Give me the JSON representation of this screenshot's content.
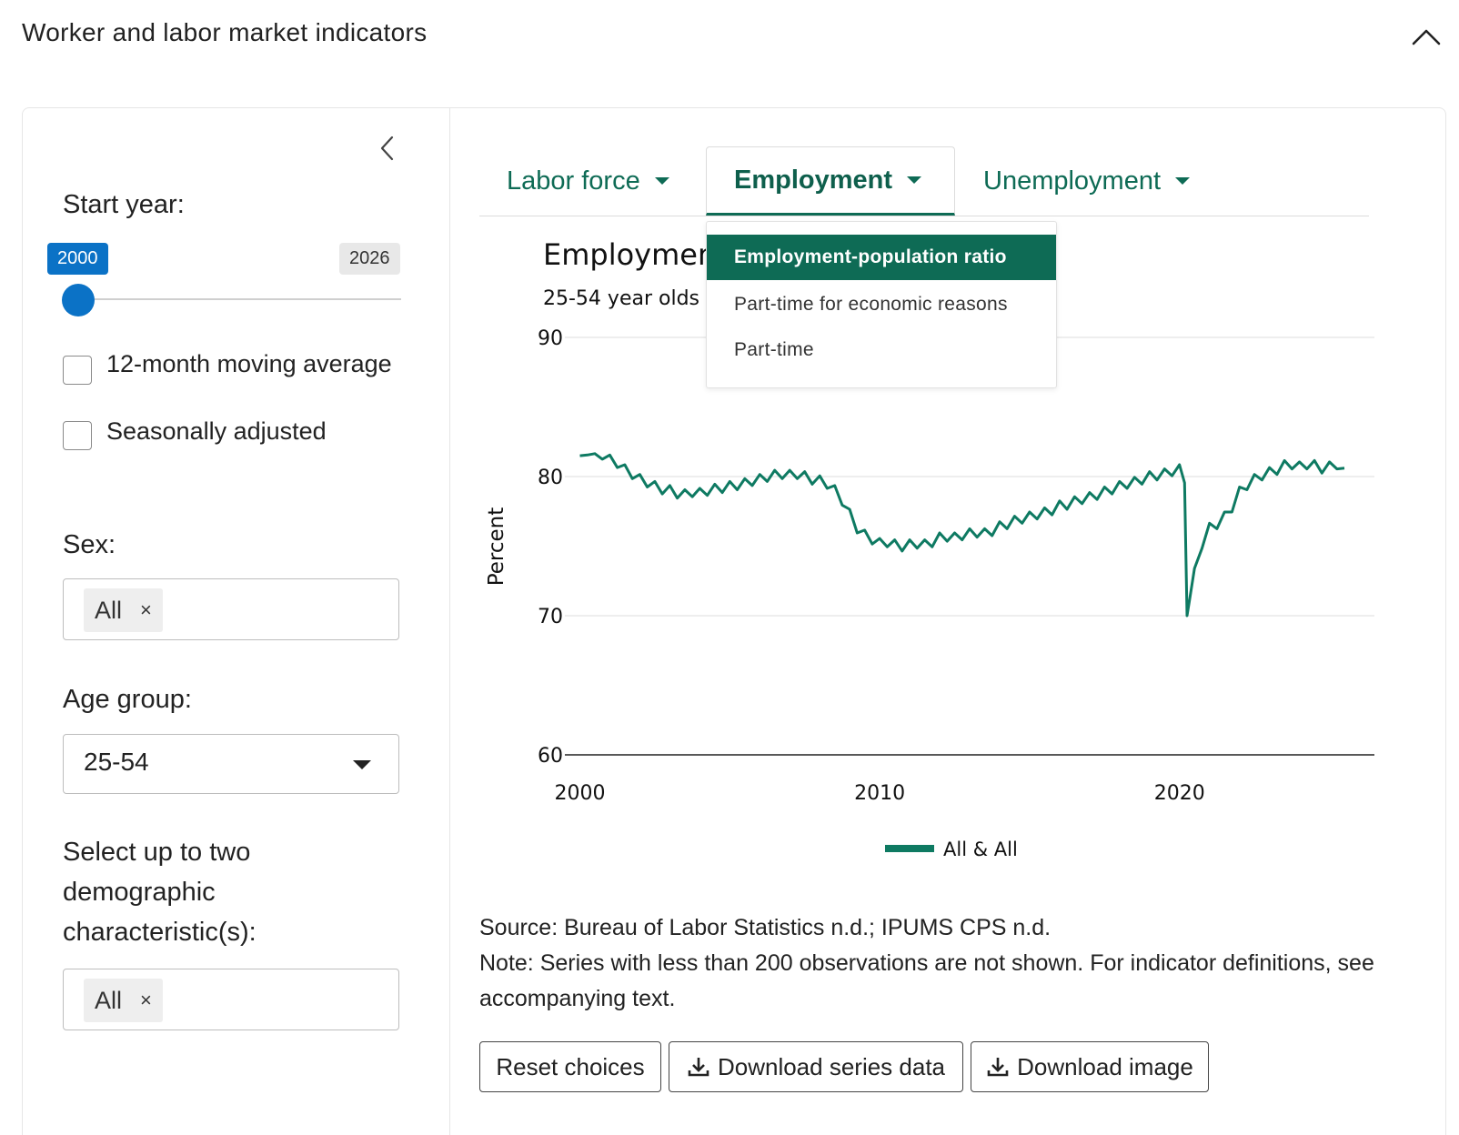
{
  "section": {
    "title": "Worker and labor market indicators"
  },
  "sidebar": {
    "start_year_label": "Start year:",
    "slider": {
      "from_label": "2000",
      "to_label": "2026",
      "value": 2000,
      "min": 2000,
      "max": 2026
    },
    "checkboxes": [
      {
        "label": "12-month moving average",
        "checked": false
      },
      {
        "label": "Seasonally adjusted",
        "checked": false
      }
    ],
    "sex": {
      "label": "Sex:",
      "chip": "All",
      "remove": "×"
    },
    "age_group": {
      "label": "Age group:",
      "value": "25-54"
    },
    "demographic": {
      "label": "Select up to two demographic characteristic(s):",
      "chip": "All",
      "remove": "×"
    }
  },
  "tabs": [
    {
      "label": "Labor force",
      "active": false
    },
    {
      "label": "Employment",
      "active": true
    },
    {
      "label": "Unemployment",
      "active": false
    }
  ],
  "dropdown": {
    "items": [
      {
        "label": "Employment-population ratio",
        "active": true
      },
      {
        "label": "Part-time for economic reasons",
        "active": false
      },
      {
        "label": "Part-time",
        "active": false
      }
    ]
  },
  "chart_data": {
    "type": "line",
    "title": "Employmen",
    "subtitle": "25-54 year olds",
    "ylabel": "Percent",
    "ylim": [
      60,
      90
    ],
    "yticks": [
      60,
      70,
      80,
      90
    ],
    "xlim": [
      1999.5,
      2026.5
    ],
    "xticks": [
      2000,
      2010,
      2020
    ],
    "grid": true,
    "legend_position": "bottom",
    "series": [
      {
        "name": "All & All",
        "color": "#0e7a62",
        "points": [
          [
            2000.0,
            81.5
          ],
          [
            2000.25,
            81.9
          ],
          [
            2000.5,
            81.3
          ],
          [
            2000.75,
            81.6
          ],
          [
            2001.0,
            81.2
          ],
          [
            2001.25,
            81.0
          ],
          [
            2001.5,
            80.5
          ],
          [
            2001.75,
            80.2
          ],
          [
            2002.0,
            79.8
          ],
          [
            2002.25,
            79.6
          ],
          [
            2002.5,
            79.3
          ],
          [
            2002.75,
            79.1
          ],
          [
            2003.0,
            79.0
          ],
          [
            2003.25,
            78.8
          ],
          [
            2003.5,
            78.7
          ],
          [
            2003.75,
            78.9
          ],
          [
            2004.0,
            78.8
          ],
          [
            2004.25,
            79.0
          ],
          [
            2004.5,
            79.1
          ],
          [
            2004.75,
            79.2
          ],
          [
            2005.0,
            79.3
          ],
          [
            2005.25,
            79.4
          ],
          [
            2005.5,
            79.5
          ],
          [
            2005.75,
            79.7
          ],
          [
            2006.0,
            79.8
          ],
          [
            2006.25,
            80.0
          ],
          [
            2006.5,
            80.1
          ],
          [
            2006.75,
            80.2
          ],
          [
            2007.0,
            80.1
          ],
          [
            2007.25,
            80.2
          ],
          [
            2007.5,
            80.0
          ],
          [
            2007.75,
            79.8
          ],
          [
            2008.0,
            79.7
          ],
          [
            2008.25,
            79.5
          ],
          [
            2008.5,
            79.0
          ],
          [
            2008.75,
            78.3
          ],
          [
            2009.0,
            77.3
          ],
          [
            2009.25,
            76.3
          ],
          [
            2009.5,
            75.8
          ],
          [
            2009.75,
            75.5
          ],
          [
            2010.0,
            75.2
          ],
          [
            2010.25,
            75.3
          ],
          [
            2010.5,
            75.1
          ],
          [
            2010.75,
            75.0
          ],
          [
            2011.0,
            75.1
          ],
          [
            2011.25,
            75.2
          ],
          [
            2011.5,
            75.1
          ],
          [
            2011.75,
            75.3
          ],
          [
            2012.0,
            75.6
          ],
          [
            2012.25,
            75.7
          ],
          [
            2012.5,
            75.6
          ],
          [
            2012.75,
            75.8
          ],
          [
            2013.0,
            75.9
          ],
          [
            2013.25,
            76.0
          ],
          [
            2013.5,
            75.9
          ],
          [
            2013.75,
            76.1
          ],
          [
            2014.0,
            76.4
          ],
          [
            2014.25,
            76.6
          ],
          [
            2014.5,
            76.8
          ],
          [
            2014.75,
            77.0
          ],
          [
            2015.0,
            77.1
          ],
          [
            2015.25,
            77.3
          ],
          [
            2015.5,
            77.4
          ],
          [
            2015.75,
            77.6
          ],
          [
            2016.0,
            77.9
          ],
          [
            2016.25,
            78.0
          ],
          [
            2016.5,
            78.2
          ],
          [
            2016.75,
            78.4
          ],
          [
            2017.0,
            78.5
          ],
          [
            2017.25,
            78.7
          ],
          [
            2017.5,
            78.9
          ],
          [
            2017.75,
            79.1
          ],
          [
            2018.0,
            79.3
          ],
          [
            2018.25,
            79.5
          ],
          [
            2018.5,
            79.6
          ],
          [
            2018.75,
            79.8
          ],
          [
            2019.0,
            80.0
          ],
          [
            2019.25,
            80.1
          ],
          [
            2019.5,
            80.2
          ],
          [
            2019.75,
            80.4
          ],
          [
            2020.0,
            80.5
          ],
          [
            2020.17,
            79.9
          ],
          [
            2020.25,
            70.0
          ],
          [
            2020.33,
            71.4
          ],
          [
            2020.5,
            73.4
          ],
          [
            2020.75,
            75.2
          ],
          [
            2021.0,
            76.3
          ],
          [
            2021.25,
            76.6
          ],
          [
            2021.5,
            77.1
          ],
          [
            2021.75,
            77.8
          ],
          [
            2022.0,
            78.9
          ],
          [
            2022.25,
            79.4
          ],
          [
            2022.5,
            79.8
          ],
          [
            2022.75,
            80.1
          ],
          [
            2023.0,
            80.3
          ],
          [
            2023.25,
            80.5
          ],
          [
            2023.5,
            80.8
          ],
          [
            2023.75,
            80.9
          ],
          [
            2024.0,
            80.7
          ],
          [
            2024.25,
            80.9
          ],
          [
            2024.5,
            80.8
          ],
          [
            2024.75,
            80.6
          ],
          [
            2025.0,
            80.7
          ],
          [
            2025.25,
            80.9
          ],
          [
            2025.5,
            80.6
          ]
        ]
      }
    ]
  },
  "source": {
    "line1": "Source: Bureau of Labor Statistics n.d.; IPUMS CPS n.d.",
    "line2": "Note: Series with less than 200 observations are not shown. For indicator definitions, see accompanying text."
  },
  "buttons": {
    "reset": "Reset choices",
    "download_data": "Download series data",
    "download_image": "Download image"
  }
}
